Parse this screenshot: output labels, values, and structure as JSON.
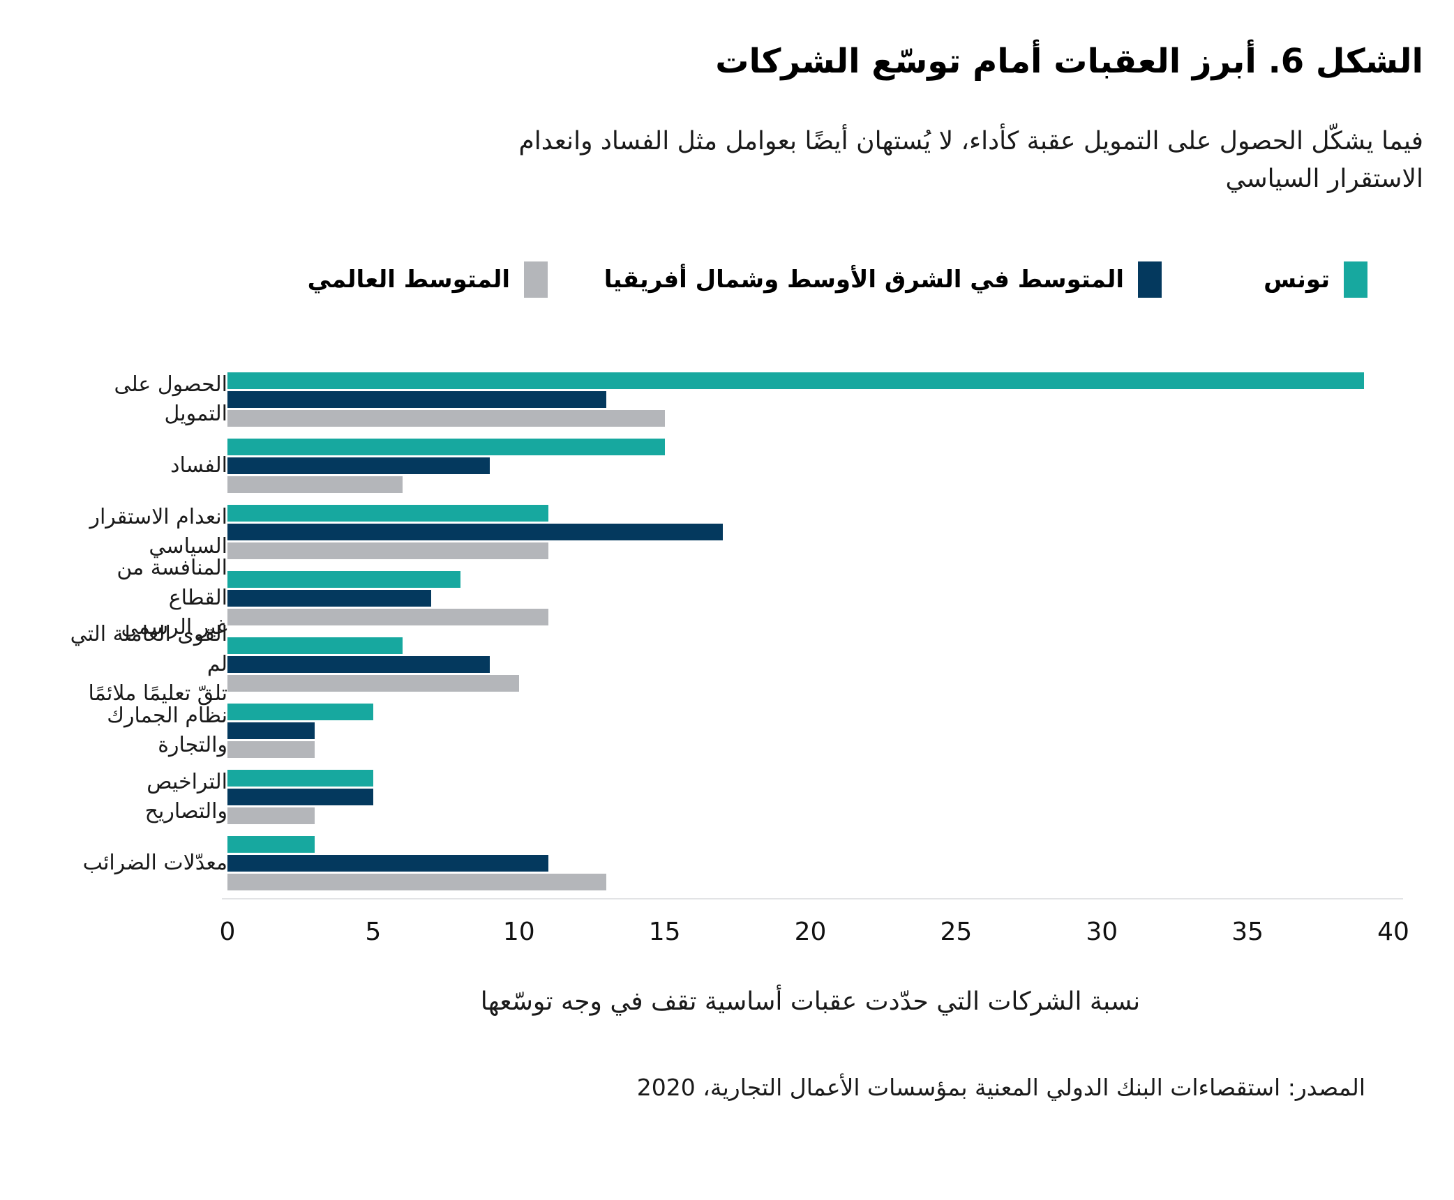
{
  "header": {
    "title": "الشكل 6. أبرز العقبات أمام توسّع الشركات",
    "subtitle": "فيما يشكّل الحصول على التمويل عقبة كأداء، لا يُستهان أيضًا بعوامل مثل الفساد وانعدام\nالاستقرار السياسي"
  },
  "legend": [
    {
      "label": "تونس",
      "color": "#17A89F"
    },
    {
      "label": "المتوسط في الشرق الأوسط وشمال أفريقيا",
      "color": "#04395E"
    },
    {
      "label": "المتوسط العالمي",
      "color": "#B4B6BA"
    }
  ],
  "chart_data": {
    "type": "bar",
    "orientation": "horizontal",
    "title": "الشكل 6. أبرز العقبات أمام توسّع الشركات",
    "subtitle": "فيما يشكّل الحصول على التمويل عقبة كأداء، لا يُستهان أيضًا بعوامل مثل الفساد وانعدام الاستقرار السياسي",
    "categories": [
      "الحصول على التمويل",
      "الفساد",
      "انعدام الاستقرار\nالسياسي",
      "المنافسة من القطاع\nغير الرسمي",
      "القوى العاملة التي لم\nتلقّ تعليمًا ملائمًا",
      "نظام الجمارك والتجارة",
      "التراخيص والتصاريح",
      "معدّلات الضرائب"
    ],
    "series": [
      {
        "name": "تونس",
        "color": "#17A89F",
        "values": [
          39,
          15,
          11,
          8,
          6,
          5,
          5,
          3
        ]
      },
      {
        "name": "المتوسط في الشرق الأوسط وشمال أفريقيا",
        "color": "#04395E",
        "values": [
          13,
          9,
          17,
          7,
          9,
          3,
          5,
          11
        ]
      },
      {
        "name": "المتوسط العالمي",
        "color": "#B4B6BA",
        "values": [
          15,
          6,
          11,
          11,
          10,
          3,
          3,
          13
        ]
      }
    ],
    "xlim": [
      0,
      40
    ],
    "xticks": [
      0,
      5,
      10,
      15,
      20,
      25,
      30,
      35,
      40
    ],
    "xlabel": "نسبة الشركات التي حدّدت عقبات أساسية تقف في وجه توسّعها",
    "grid": false,
    "legend_position": "top"
  },
  "footer": {
    "source": "المصدر: استقصاءات البنك الدولي المعنية بمؤسسات الأعمال التجارية، 2020"
  }
}
